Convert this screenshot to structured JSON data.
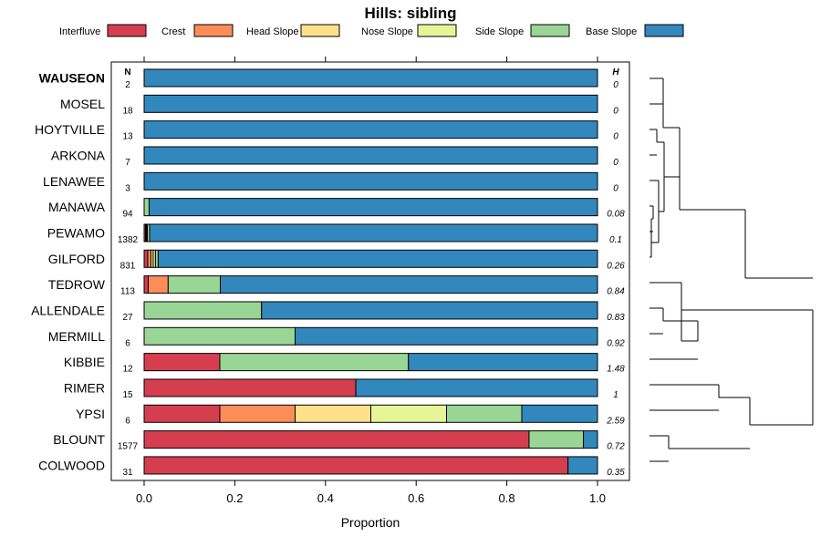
{
  "chart_data": {
    "type": "bar",
    "subtype": "stacked-horizontal-proportion",
    "title": "Hills: sibling",
    "xlabel": "Proportion",
    "xlim": [
      0,
      1
    ],
    "xticks": [
      "0.0",
      "0.2",
      "0.4",
      "0.6",
      "0.8",
      "1.0"
    ],
    "column_headers": {
      "n": "N",
      "h": "H"
    },
    "legend": [
      {
        "name": "Interfluve",
        "color": "#d53e4f"
      },
      {
        "name": "Crest",
        "color": "#fc8d59"
      },
      {
        "name": "Head Slope",
        "color": "#fee08b"
      },
      {
        "name": "Nose Slope",
        "color": "#e6f598"
      },
      {
        "name": "Side Slope",
        "color": "#99d594"
      },
      {
        "name": "Base Slope",
        "color": "#3288bd"
      }
    ],
    "rows": [
      {
        "label": "WAUSEON",
        "bold": true,
        "n": "2",
        "h": "0",
        "values": [
          0,
          0,
          0,
          0,
          0,
          1
        ]
      },
      {
        "label": "MOSEL",
        "bold": false,
        "n": "18",
        "h": "0",
        "values": [
          0,
          0,
          0,
          0,
          0,
          1
        ]
      },
      {
        "label": "HOYTVILLE",
        "bold": false,
        "n": "13",
        "h": "0",
        "values": [
          0,
          0,
          0,
          0,
          0,
          1
        ]
      },
      {
        "label": "ARKONA",
        "bold": false,
        "n": "7",
        "h": "0",
        "values": [
          0,
          0,
          0,
          0,
          0,
          1
        ]
      },
      {
        "label": "LENAWEE",
        "bold": false,
        "n": "3",
        "h": "0",
        "values": [
          0,
          0,
          0,
          0,
          0,
          1
        ]
      },
      {
        "label": "MANAWA",
        "bold": false,
        "n": "94",
        "h": "0.08",
        "values": [
          0,
          0,
          0,
          0,
          0.011,
          0.989
        ]
      },
      {
        "label": "PEWAMO",
        "bold": false,
        "n": "1382",
        "h": "0.1",
        "values": [
          0.003,
          0.002,
          0.001,
          0.001,
          0.005,
          0.988
        ]
      },
      {
        "label": "GILFORD",
        "bold": false,
        "n": "831",
        "h": "0.26",
        "values": [
          0.008,
          0.007,
          0.005,
          0.005,
          0.006,
          0.969
        ]
      },
      {
        "label": "TEDROW",
        "bold": false,
        "n": "113",
        "h": "0.84",
        "values": [
          0.009,
          0.044,
          0,
          0,
          0.115,
          0.832
        ]
      },
      {
        "label": "ALLENDALE",
        "bold": false,
        "n": "27",
        "h": "0.83",
        "values": [
          0,
          0,
          0,
          0,
          0.259,
          0.741
        ]
      },
      {
        "label": "MERMILL",
        "bold": false,
        "n": "6",
        "h": "0.92",
        "values": [
          0,
          0,
          0,
          0,
          0.333,
          0.667
        ]
      },
      {
        "label": "KIBBIE",
        "bold": false,
        "n": "12",
        "h": "1.48",
        "values": [
          0.167,
          0,
          0,
          0,
          0.416,
          0.417
        ]
      },
      {
        "label": "RIMER",
        "bold": false,
        "n": "15",
        "h": "1",
        "values": [
          0.467,
          0,
          0,
          0,
          0,
          0.533
        ]
      },
      {
        "label": "YPSI",
        "bold": false,
        "n": "6",
        "h": "2.59",
        "values": [
          0.167,
          0.166,
          0.167,
          0.167,
          0.166,
          0.167
        ]
      },
      {
        "label": "BLOUNT",
        "bold": false,
        "n": "1577",
        "h": "0.72",
        "values": [
          0.849,
          0,
          0,
          0,
          0.12,
          0.031
        ]
      },
      {
        "label": "COLWOOD",
        "bold": false,
        "n": "31",
        "h": "0.35",
        "values": [
          0.935,
          0,
          0,
          0,
          0,
          0.065
        ]
      }
    ],
    "dendrogram": {
      "merge_order": [
        [
          [
            "WAUSEON",
            "MOSEL"
          ],
          0.02
        ],
        [
          [
            "HOYTVILLE",
            "ARKONA"
          ],
          0.03
        ],
        [
          [
            "MANAWA",
            "PEWAMO"
          ],
          0.01
        ],
        [
          [
            "MANAWA-PEWAMO",
            "GILFORD"
          ],
          0.03
        ],
        [
          [
            "LENAWEE",
            "MANAWA-PEWAMO-GILFORD"
          ],
          0.05
        ],
        [
          [
            "TEDROW",
            "ALLENDALE"
          ],
          0.08
        ],
        [
          [
            "BLOUNT",
            "COLWOOD"
          ],
          0.12
        ]
      ]
    }
  }
}
